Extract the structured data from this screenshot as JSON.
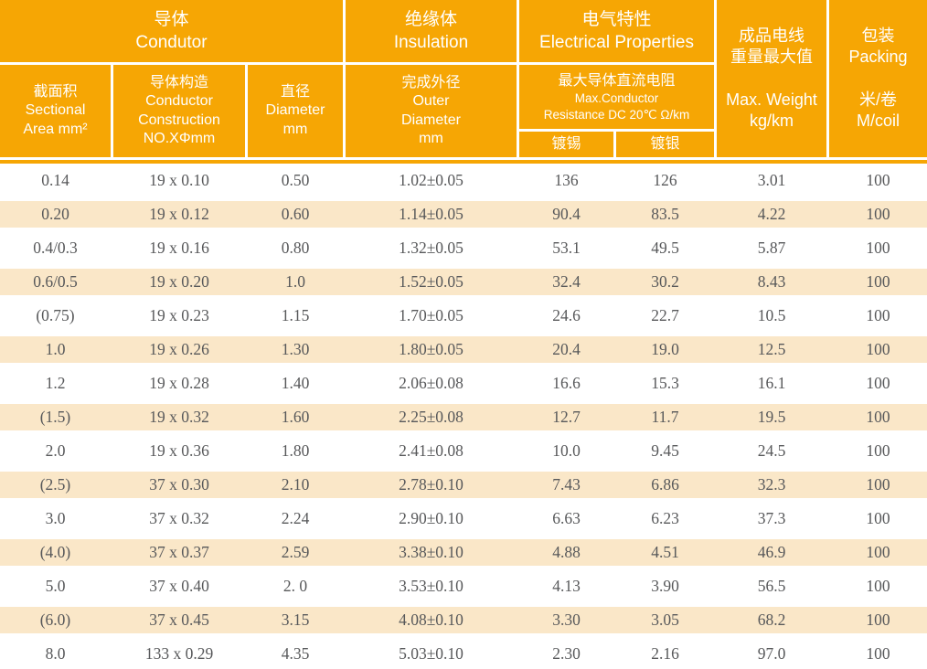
{
  "table": {
    "header": {
      "conductor_group": "导体\nCondutor",
      "insulation_group": "绝缘体\nInsulation",
      "electrical_group": "电气特性\nElectrical Properties",
      "max_weight": "成品电线\n重量最大值\n\nMax. Weight\nkg/km",
      "packing": "包装\nPacking\n\n米/卷\nM/coil",
      "sectional_area": "截面积\nSectional\nArea mm²",
      "conductor_construction": "导体构造\nConductor\nConstruction\nNO.XΦmm",
      "diameter": "直径\nDiameter\nmm",
      "outer_diameter": "完成外径\nOuter\nDiameter\nmm",
      "resistance_zh": "最大导体直流电阻",
      "resistance_en1": "Max.Conductor",
      "resistance_en2": "Resistance DC 20℃   Ω/km",
      "tinned": "镀锡",
      "silver_plated": "镀银"
    },
    "rows": [
      [
        "0.14",
        "19 x 0.10",
        "0.50",
        "1.02±0.05",
        "136",
        "126",
        "3.01",
        "100"
      ],
      [
        "0.20",
        "19 x 0.12",
        "0.60",
        "1.14±0.05",
        "90.4",
        "83.5",
        "4.22",
        "100"
      ],
      [
        "0.4/0.3",
        "19 x 0.16",
        "0.80",
        "1.32±0.05",
        "53.1",
        "49.5",
        "5.87",
        "100"
      ],
      [
        "0.6/0.5",
        "19 x 0.20",
        "1.0",
        "1.52±0.05",
        "32.4",
        "30.2",
        "8.43",
        "100"
      ],
      [
        "(0.75)",
        "19 x 0.23",
        "1.15",
        "1.70±0.05",
        "24.6",
        "22.7",
        "10.5",
        "100"
      ],
      [
        "1.0",
        "19 x 0.26",
        "1.30",
        "1.80±0.05",
        "20.4",
        "19.0",
        "12.5",
        "100"
      ],
      [
        "1.2",
        "19 x 0.28",
        "1.40",
        "2.06±0.08",
        "16.6",
        "15.3",
        "16.1",
        "100"
      ],
      [
        "(1.5)",
        "19 x 0.32",
        "1.60",
        "2.25±0.08",
        "12.7",
        "11.7",
        "19.5",
        "100"
      ],
      [
        "2.0",
        "19 x 0.36",
        "1.80",
        "2.41±0.08",
        "10.0",
        "9.45",
        "24.5",
        "100"
      ],
      [
        "(2.5)",
        "37 x 0.30",
        "2.10",
        "2.78±0.10",
        "7.43",
        "6.86",
        "32.3",
        "100"
      ],
      [
        "3.0",
        "37 x 0.32",
        "2.24",
        "2.90±0.10",
        "6.63",
        "6.23",
        "37.3",
        "100"
      ],
      [
        "(4.0)",
        "37 x 0.37",
        "2.59",
        "3.38±0.10",
        "4.88",
        "4.51",
        "46.9",
        "100"
      ],
      [
        "5.0",
        "37 x 0.40",
        "2. 0",
        "3.53±0.10",
        "4.13",
        "3.90",
        "56.5",
        "100"
      ],
      [
        "(6.0)",
        "37 x 0.45",
        "3.15",
        "4.08±0.10",
        "3.30",
        "3.05",
        "68.2",
        "100"
      ],
      [
        "8.0",
        "133 x 0.29",
        "4.35",
        "5.03±0.10",
        "2.30",
        "2.16",
        "97.0",
        "100"
      ]
    ],
    "colors": {
      "header_orange": "#F6A604",
      "row_stripe": "#FAE7C8",
      "body_text": "#57585A",
      "header_text": "#FFFFFF",
      "grid_line": "#FFFFFF"
    }
  }
}
